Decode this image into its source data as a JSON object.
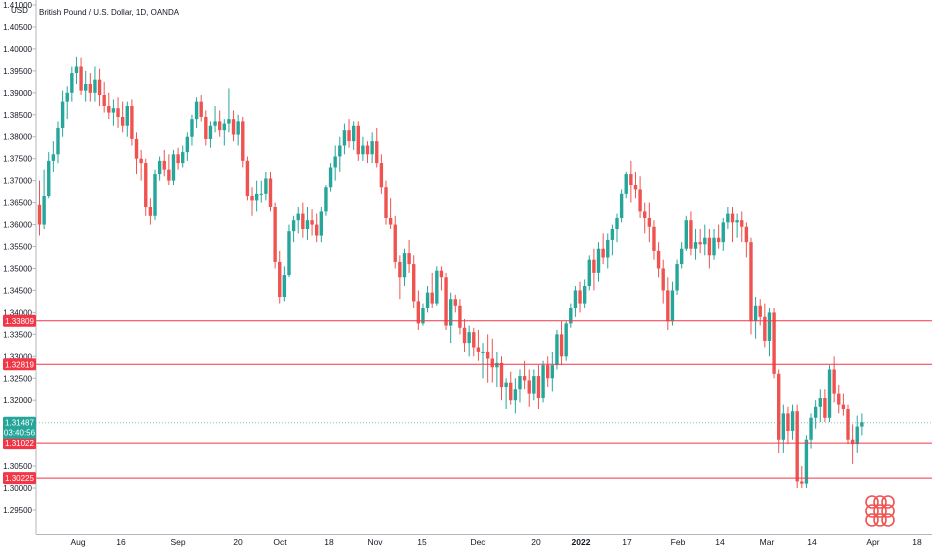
{
  "header": {
    "title": "British Pound / U.S. Dollar, 1D, OANDA",
    "currency": "USD"
  },
  "price_axis": {
    "ticks": [
      "1.41000",
      "1.40500",
      "1.40000",
      "1.39500",
      "1.39000",
      "1.38500",
      "1.38000",
      "1.37500",
      "1.37000",
      "1.36500",
      "1.36000",
      "1.35500",
      "1.35000",
      "1.34500",
      "1.34000",
      "1.33500",
      "1.33000",
      "1.32500",
      "1.32000",
      "1.31500",
      "1.31000",
      "1.30500",
      "1.30000",
      "1.29500"
    ]
  },
  "time_axis": {
    "labels": [
      {
        "text": "Aug",
        "bold": false
      },
      {
        "text": "16",
        "bold": false
      },
      {
        "text": "Sep",
        "bold": false
      },
      {
        "text": "20",
        "bold": false
      },
      {
        "text": "Oct",
        "bold": false
      },
      {
        "text": "18",
        "bold": false
      },
      {
        "text": "Nov",
        "bold": false
      },
      {
        "text": "15",
        "bold": false
      },
      {
        "text": "Dec",
        "bold": false
      },
      {
        "text": "20",
        "bold": false
      },
      {
        "text": "2022",
        "bold": true
      },
      {
        "text": "17",
        "bold": false
      },
      {
        "text": "Feb",
        "bold": false
      },
      {
        "text": "14",
        "bold": false
      },
      {
        "text": "Mar",
        "bold": false
      },
      {
        "text": "14",
        "bold": false
      },
      {
        "text": "Apr",
        "bold": false
      },
      {
        "text": "18",
        "bold": false
      }
    ]
  },
  "levels": [
    {
      "label": "1.33809",
      "price": 1.33809
    },
    {
      "label": "1.32819",
      "price": 1.32819
    },
    {
      "label": "1.31022",
      "price": 1.31022
    },
    {
      "label": "1.30225",
      "price": 1.30225
    }
  ],
  "current_price": {
    "label": "1.31487",
    "countdown": "03:40:56",
    "price": 1.31487
  },
  "colors": {
    "up": "#26a69a",
    "down": "#ef5350",
    "level": "#f23645",
    "current": "#26a69a"
  },
  "chart_data": {
    "type": "candlestick",
    "title": "British Pound / U.S. Dollar, 1D, OANDA",
    "ylabel": "USD",
    "ylim": [
      1.2925,
      1.4111
    ],
    "x": [
      "2021-07-19",
      "2021-07-20",
      "2021-07-21",
      "2021-07-22",
      "2021-07-23",
      "2021-07-26",
      "2021-07-27",
      "2021-07-28",
      "2021-07-29",
      "2021-07-30",
      "2021-08-02",
      "2021-08-03",
      "2021-08-04",
      "2021-08-05",
      "2021-08-06",
      "2021-08-09",
      "2021-08-10",
      "2021-08-11",
      "2021-08-12",
      "2021-08-13",
      "2021-08-16",
      "2021-08-17",
      "2021-08-18",
      "2021-08-19",
      "2021-08-20",
      "2021-08-23",
      "2021-08-24",
      "2021-08-25",
      "2021-08-26",
      "2021-08-27",
      "2021-08-30",
      "2021-08-31",
      "2021-09-01",
      "2021-09-02",
      "2021-09-03",
      "2021-09-06",
      "2021-09-07",
      "2021-09-08",
      "2021-09-09",
      "2021-09-10",
      "2021-09-13",
      "2021-09-14",
      "2021-09-15",
      "2021-09-16",
      "2021-09-17",
      "2021-09-20",
      "2021-09-21",
      "2021-09-22",
      "2021-09-23",
      "2021-09-24",
      "2021-09-27",
      "2021-09-28",
      "2021-09-29",
      "2021-09-30",
      "2021-10-01",
      "2021-10-04",
      "2021-10-05",
      "2021-10-06",
      "2021-10-07",
      "2021-10-08",
      "2021-10-11",
      "2021-10-12",
      "2021-10-13",
      "2021-10-14",
      "2021-10-15",
      "2021-10-18",
      "2021-10-19",
      "2021-10-20",
      "2021-10-21",
      "2021-10-22",
      "2021-10-25",
      "2021-10-26",
      "2021-10-27",
      "2021-10-28",
      "2021-10-29",
      "2021-11-01",
      "2021-11-02",
      "2021-11-03",
      "2021-11-04",
      "2021-11-05",
      "2021-11-08",
      "2021-11-09",
      "2021-11-10",
      "2021-11-11",
      "2021-11-12",
      "2021-11-15",
      "2021-11-16",
      "2021-11-17",
      "2021-11-18",
      "2021-11-19",
      "2021-11-22",
      "2021-11-23",
      "2021-11-24",
      "2021-11-25",
      "2021-11-26",
      "2021-11-29",
      "2021-11-30",
      "2021-12-01",
      "2021-12-02",
      "2021-12-03",
      "2021-12-06",
      "2021-12-07",
      "2021-12-08",
      "2021-12-09",
      "2021-12-10",
      "2021-12-13",
      "2021-12-14",
      "2021-12-15",
      "2021-12-16",
      "2021-12-17",
      "2021-12-20",
      "2021-12-21",
      "2021-12-22",
      "2021-12-23",
      "2021-12-24",
      "2021-12-27",
      "2021-12-28",
      "2021-12-29",
      "2021-12-30",
      "2021-12-31",
      "2022-01-03",
      "2022-01-04",
      "2022-01-05",
      "2022-01-06",
      "2022-01-07",
      "2022-01-10",
      "2022-01-11",
      "2022-01-12",
      "2022-01-13",
      "2022-01-14",
      "2022-01-17",
      "2022-01-18",
      "2022-01-19",
      "2022-01-20",
      "2022-01-21",
      "2022-01-24",
      "2022-01-25",
      "2022-01-26",
      "2022-01-27",
      "2022-01-28",
      "2022-01-31",
      "2022-02-01",
      "2022-02-02",
      "2022-02-03",
      "2022-02-04",
      "2022-02-07",
      "2022-02-08",
      "2022-02-09",
      "2022-02-10",
      "2022-02-11",
      "2022-02-14",
      "2022-02-15",
      "2022-02-16",
      "2022-02-17",
      "2022-02-18",
      "2022-02-21",
      "2022-02-22",
      "2022-02-23",
      "2022-02-24",
      "2022-02-25",
      "2022-02-28",
      "2022-03-01",
      "2022-03-02",
      "2022-03-03",
      "2022-03-04",
      "2022-03-07",
      "2022-03-08",
      "2022-03-09",
      "2022-03-10",
      "2022-03-11",
      "2022-03-14",
      "2022-03-15",
      "2022-03-16",
      "2022-03-17",
      "2022-03-18",
      "2022-03-21",
      "2022-03-22",
      "2022-03-23",
      "2022-03-24",
      "2022-03-25",
      "2022-03-28",
      "2022-03-29"
    ],
    "ohlc": [
      [
        1.3645,
        1.37,
        1.3575,
        1.36
      ],
      [
        1.36,
        1.3725,
        1.359,
        1.3665
      ],
      [
        1.3665,
        1.3765,
        1.366,
        1.3745
      ],
      [
        1.3745,
        1.379,
        1.372,
        1.376
      ],
      [
        1.376,
        1.3835,
        1.374,
        1.382
      ],
      [
        1.382,
        1.3905,
        1.38,
        1.388
      ],
      [
        1.388,
        1.3915,
        1.384,
        1.39
      ],
      [
        1.39,
        1.396,
        1.388,
        1.3945
      ],
      [
        1.3945,
        1.3982,
        1.392,
        1.396
      ],
      [
        1.396,
        1.398,
        1.3895,
        1.3905
      ],
      [
        1.3905,
        1.395,
        1.388,
        1.392
      ],
      [
        1.392,
        1.3945,
        1.388,
        1.39
      ],
      [
        1.39,
        1.396,
        1.388,
        1.393
      ],
      [
        1.393,
        1.3955,
        1.387,
        1.3895
      ],
      [
        1.3895,
        1.3925,
        1.3855,
        1.387
      ],
      [
        1.387,
        1.39,
        1.384,
        1.3855
      ],
      [
        1.3855,
        1.3885,
        1.3825,
        1.3865
      ],
      [
        1.3865,
        1.389,
        1.382,
        1.3845
      ],
      [
        1.3845,
        1.388,
        1.381,
        1.3825
      ],
      [
        1.3825,
        1.388,
        1.38,
        1.387
      ],
      [
        1.387,
        1.3885,
        1.378,
        1.3795
      ],
      [
        1.3795,
        1.381,
        1.3715,
        1.375
      ],
      [
        1.375,
        1.377,
        1.37,
        1.374
      ],
      [
        1.374,
        1.375,
        1.362,
        1.364
      ],
      [
        1.364,
        1.366,
        1.36,
        1.362
      ],
      [
        1.362,
        1.3725,
        1.361,
        1.3715
      ],
      [
        1.3715,
        1.3755,
        1.37,
        1.3745
      ],
      [
        1.3745,
        1.377,
        1.371,
        1.3725
      ],
      [
        1.3725,
        1.376,
        1.369,
        1.37
      ],
      [
        1.37,
        1.377,
        1.369,
        1.376
      ],
      [
        1.376,
        1.3775,
        1.3725,
        1.374
      ],
      [
        1.374,
        1.378,
        1.373,
        1.3765
      ],
      [
        1.3765,
        1.381,
        1.3745,
        1.38
      ],
      [
        1.38,
        1.385,
        1.378,
        1.384
      ],
      [
        1.384,
        1.389,
        1.382,
        1.388
      ],
      [
        1.388,
        1.3895,
        1.3835,
        1.3845
      ],
      [
        1.3845,
        1.386,
        1.378,
        1.3795
      ],
      [
        1.3795,
        1.3835,
        1.3775,
        1.3825
      ],
      [
        1.3825,
        1.387,
        1.381,
        1.3835
      ],
      [
        1.3835,
        1.386,
        1.38,
        1.3815
      ],
      [
        1.3815,
        1.384,
        1.378,
        1.383
      ],
      [
        1.383,
        1.391,
        1.381,
        1.384
      ],
      [
        1.384,
        1.386,
        1.379,
        1.3805
      ],
      [
        1.3805,
        1.385,
        1.378,
        1.3835
      ],
      [
        1.3835,
        1.3845,
        1.373,
        1.3745
      ],
      [
        1.3745,
        1.3755,
        1.3655,
        1.3665
      ],
      [
        1.3665,
        1.3685,
        1.362,
        1.3655
      ],
      [
        1.3655,
        1.37,
        1.363,
        1.367
      ],
      [
        1.367,
        1.37,
        1.365,
        1.367
      ],
      [
        1.367,
        1.372,
        1.3655,
        1.3705
      ],
      [
        1.3705,
        1.372,
        1.363,
        1.364
      ],
      [
        1.364,
        1.365,
        1.35,
        1.3515
      ],
      [
        1.3515,
        1.354,
        1.342,
        1.3435
      ],
      [
        1.3435,
        1.3505,
        1.3425,
        1.3485
      ],
      [
        1.3485,
        1.36,
        1.348,
        1.3585
      ],
      [
        1.3585,
        1.362,
        1.356,
        1.361
      ],
      [
        1.361,
        1.364,
        1.358,
        1.3625
      ],
      [
        1.3625,
        1.365,
        1.357,
        1.359
      ],
      [
        1.359,
        1.364,
        1.3565,
        1.361
      ],
      [
        1.361,
        1.3635,
        1.3575,
        1.36
      ],
      [
        1.36,
        1.3625,
        1.356,
        1.3575
      ],
      [
        1.3575,
        1.364,
        1.356,
        1.363
      ],
      [
        1.363,
        1.369,
        1.362,
        1.3685
      ],
      [
        1.3685,
        1.374,
        1.3675,
        1.373
      ],
      [
        1.373,
        1.378,
        1.37,
        1.3755
      ],
      [
        1.3755,
        1.38,
        1.372,
        1.378
      ],
      [
        1.378,
        1.383,
        1.376,
        1.3815
      ],
      [
        1.3815,
        1.384,
        1.3775,
        1.379
      ],
      [
        1.379,
        1.3835,
        1.377,
        1.3825
      ],
      [
        1.3825,
        1.3835,
        1.3745,
        1.376
      ],
      [
        1.376,
        1.38,
        1.3745,
        1.378
      ],
      [
        1.378,
        1.379,
        1.374,
        1.376
      ],
      [
        1.376,
        1.381,
        1.374,
        1.379
      ],
      [
        1.379,
        1.382,
        1.373,
        1.374
      ],
      [
        1.374,
        1.376,
        1.367,
        1.3685
      ],
      [
        1.3685,
        1.37,
        1.36,
        1.3615
      ],
      [
        1.3615,
        1.366,
        1.359,
        1.36
      ],
      [
        1.36,
        1.362,
        1.35,
        1.3515
      ],
      [
        1.3515,
        1.353,
        1.343,
        1.348
      ],
      [
        1.348,
        1.3545,
        1.346,
        1.3535
      ],
      [
        1.3535,
        1.3565,
        1.349,
        1.351
      ],
      [
        1.351,
        1.353,
        1.341,
        1.3425
      ],
      [
        1.3425,
        1.345,
        1.336,
        1.3375
      ],
      [
        1.3375,
        1.342,
        1.337,
        1.341
      ],
      [
        1.341,
        1.346,
        1.34,
        1.3445
      ],
      [
        1.3445,
        1.349,
        1.341,
        1.342
      ],
      [
        1.342,
        1.3505,
        1.3415,
        1.3495
      ],
      [
        1.3495,
        1.3505,
        1.345,
        1.348
      ],
      [
        1.348,
        1.349,
        1.336,
        1.337
      ],
      [
        1.337,
        1.3445,
        1.333,
        1.343
      ],
      [
        1.343,
        1.344,
        1.34,
        1.3415
      ],
      [
        1.3415,
        1.343,
        1.335,
        1.3365
      ],
      [
        1.3365,
        1.3385,
        1.331,
        1.333
      ],
      [
        1.333,
        1.337,
        1.33,
        1.3355
      ],
      [
        1.3355,
        1.3365,
        1.33,
        1.332
      ],
      [
        1.332,
        1.336,
        1.329,
        1.331
      ],
      [
        1.331,
        1.333,
        1.325,
        1.331
      ],
      [
        1.331,
        1.335,
        1.324,
        1.3295
      ],
      [
        1.3295,
        1.334,
        1.324,
        1.3275
      ],
      [
        1.3275,
        1.331,
        1.323,
        1.3285
      ],
      [
        1.3285,
        1.33,
        1.32,
        1.323
      ],
      [
        1.323,
        1.325,
        1.318,
        1.324
      ],
      [
        1.324,
        1.3265,
        1.319,
        1.32
      ],
      [
        1.32,
        1.325,
        1.317,
        1.3225
      ],
      [
        1.3225,
        1.327,
        1.3195,
        1.3255
      ],
      [
        1.3255,
        1.329,
        1.3225,
        1.3245
      ],
      [
        1.3245,
        1.327,
        1.3185,
        1.3215
      ],
      [
        1.3215,
        1.327,
        1.32,
        1.3255
      ],
      [
        1.3255,
        1.328,
        1.318,
        1.3205
      ],
      [
        1.3205,
        1.329,
        1.3195,
        1.328
      ],
      [
        1.328,
        1.33,
        1.323,
        1.325
      ],
      [
        1.325,
        1.331,
        1.322,
        1.328
      ],
      [
        1.328,
        1.336,
        1.327,
        1.335
      ],
      [
        1.335,
        1.338,
        1.328,
        1.33
      ],
      [
        1.33,
        1.338,
        1.329,
        1.3375
      ],
      [
        1.3375,
        1.342,
        1.3365,
        1.341
      ],
      [
        1.341,
        1.346,
        1.339,
        1.345
      ],
      [
        1.345,
        1.347,
        1.34,
        1.342
      ],
      [
        1.342,
        1.3475,
        1.341,
        1.346
      ],
      [
        1.346,
        1.353,
        1.345,
        1.352
      ],
      [
        1.352,
        1.3545,
        1.345,
        1.349
      ],
      [
        1.349,
        1.356,
        1.347,
        1.3545
      ],
      [
        1.3545,
        1.358,
        1.351,
        1.3525
      ],
      [
        1.3525,
        1.358,
        1.35,
        1.3565
      ],
      [
        1.3565,
        1.36,
        1.353,
        1.359
      ],
      [
        1.359,
        1.3625,
        1.356,
        1.3615
      ],
      [
        1.3615,
        1.368,
        1.3605,
        1.367
      ],
      [
        1.367,
        1.372,
        1.366,
        1.3715
      ],
      [
        1.3715,
        1.3745,
        1.365,
        1.369
      ],
      [
        1.369,
        1.372,
        1.366,
        1.368
      ],
      [
        1.368,
        1.371,
        1.3615,
        1.363
      ],
      [
        1.363,
        1.365,
        1.358,
        1.3615
      ],
      [
        1.3615,
        1.365,
        1.356,
        1.3595
      ],
      [
        1.3595,
        1.361,
        1.352,
        1.354
      ],
      [
        1.354,
        1.356,
        1.348,
        1.35
      ],
      [
        1.35,
        1.352,
        1.342,
        1.345
      ],
      [
        1.345,
        1.348,
        1.336,
        1.338
      ],
      [
        1.338,
        1.347,
        1.337,
        1.345
      ],
      [
        1.345,
        1.352,
        1.344,
        1.351
      ],
      [
        1.351,
        1.356,
        1.35,
        1.3545
      ],
      [
        1.3545,
        1.362,
        1.354,
        1.361
      ],
      [
        1.361,
        1.363,
        1.353,
        1.3545
      ],
      [
        1.3545,
        1.359,
        1.352,
        1.356
      ],
      [
        1.356,
        1.359,
        1.3535,
        1.3555
      ],
      [
        1.3555,
        1.36,
        1.353,
        1.357
      ],
      [
        1.357,
        1.359,
        1.35,
        1.353
      ],
      [
        1.353,
        1.359,
        1.352,
        1.357
      ],
      [
        1.357,
        1.36,
        1.3545,
        1.356
      ],
      [
        1.356,
        1.3615,
        1.354,
        1.3605
      ],
      [
        1.3605,
        1.364,
        1.359,
        1.3625
      ],
      [
        1.3625,
        1.364,
        1.356,
        1.3605
      ],
      [
        1.3605,
        1.3625,
        1.357,
        1.361
      ],
      [
        1.361,
        1.363,
        1.356,
        1.3595
      ],
      [
        1.3595,
        1.3605,
        1.3525,
        1.356
      ],
      [
        1.356,
        1.357,
        1.335,
        1.338
      ],
      [
        1.338,
        1.3435,
        1.334,
        1.3415
      ],
      [
        1.3415,
        1.343,
        1.337,
        1.339
      ],
      [
        1.339,
        1.342,
        1.332,
        1.3335
      ],
      [
        1.3335,
        1.341,
        1.33,
        1.34
      ],
      [
        1.34,
        1.341,
        1.325,
        1.326
      ],
      [
        1.326,
        1.327,
        1.308,
        1.311
      ],
      [
        1.311,
        1.319,
        1.308,
        1.317
      ],
      [
        1.317,
        1.3185,
        1.31,
        1.313
      ],
      [
        1.313,
        1.319,
        1.311,
        1.3175
      ],
      [
        1.3175,
        1.319,
        1.3,
        1.3015
      ],
      [
        1.3015,
        1.305,
        1.3,
        1.301
      ],
      [
        1.301,
        1.312,
        1.3,
        1.311
      ],
      [
        1.311,
        1.317,
        1.309,
        1.316
      ],
      [
        1.316,
        1.32,
        1.3135,
        1.3185
      ],
      [
        1.3185,
        1.3225,
        1.315,
        1.3205
      ],
      [
        1.3205,
        1.3225,
        1.315,
        1.316
      ],
      [
        1.316,
        1.328,
        1.315,
        1.327
      ],
      [
        1.327,
        1.33,
        1.3195,
        1.3215
      ],
      [
        1.3215,
        1.3235,
        1.317,
        1.319
      ],
      [
        1.319,
        1.3215,
        1.3165,
        1.318
      ],
      [
        1.318,
        1.319,
        1.31,
        1.311
      ],
      [
        1.311,
        1.3145,
        1.3055,
        1.31
      ],
      [
        1.31,
        1.3165,
        1.308,
        1.314
      ],
      [
        1.314,
        1.317,
        1.312,
        1.315
      ]
    ]
  }
}
